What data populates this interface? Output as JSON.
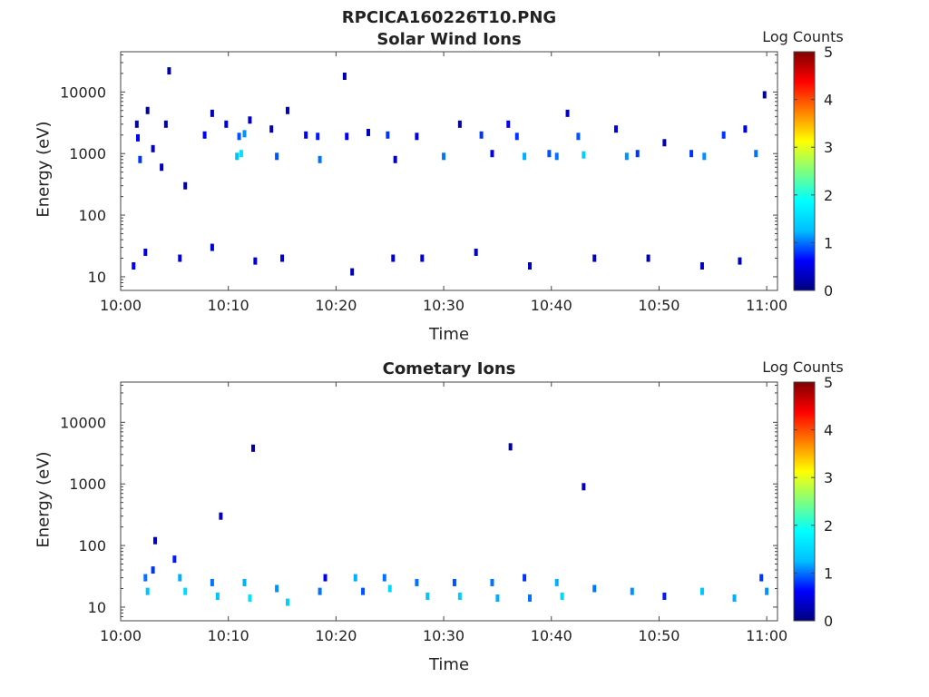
{
  "figure_title": "RPCICA160226T10.PNG",
  "colorscale": [
    "#00007f",
    "#0000ff",
    "#00bfff",
    "#00ffff",
    "#7fff7f",
    "#ffff00",
    "#ff7f00",
    "#ff0000",
    "#7f0000"
  ],
  "chart_data": [
    {
      "type": "heatmap",
      "title": "Solar Wind Ions",
      "xlabel": "Time",
      "ylabel": "Energy (eV)",
      "x_ticks": [
        "10:00",
        "10:10",
        "10:20",
        "10:30",
        "10:40",
        "10:50",
        "11:00"
      ],
      "y_ticks": [
        "10",
        "100",
        "1000",
        "10000"
      ],
      "y_scale": "log",
      "y_range": [
        6,
        45000
      ],
      "x_range_minutes": [
        0,
        61
      ],
      "colorbar": {
        "title": "Log Counts",
        "ticks": [
          "0",
          "1",
          "2",
          "3",
          "4",
          "5"
        ],
        "range": [
          0,
          5
        ]
      },
      "cells": [
        {
          "t": 1.5,
          "e": 3000,
          "v": 0.3
        },
        {
          "t": 1.8,
          "e": 800,
          "v": 0.8
        },
        {
          "t": 1.6,
          "e": 1800,
          "v": 0.6
        },
        {
          "t": 2.5,
          "e": 5000,
          "v": 0.2
        },
        {
          "t": 4.5,
          "e": 22000,
          "v": 0.2
        },
        {
          "t": 4.2,
          "e": 3000,
          "v": 0.3
        },
        {
          "t": 3.0,
          "e": 1200,
          "v": 0.4
        },
        {
          "t": 3.8,
          "e": 600,
          "v": 0.3
        },
        {
          "t": 6.0,
          "e": 300,
          "v": 0.2
        },
        {
          "t": 7.8,
          "e": 2000,
          "v": 0.6
        },
        {
          "t": 8.5,
          "e": 4500,
          "v": 0.3
        },
        {
          "t": 9.8,
          "e": 3000,
          "v": 0.5
        },
        {
          "t": 10.8,
          "e": 900,
          "v": 1.3
        },
        {
          "t": 11.2,
          "e": 1000,
          "v": 1.6
        },
        {
          "t": 11.0,
          "e": 1900,
          "v": 0.9
        },
        {
          "t": 11.5,
          "e": 2100,
          "v": 1.1
        },
        {
          "t": 12.0,
          "e": 3500,
          "v": 0.3
        },
        {
          "t": 14.0,
          "e": 2500,
          "v": 0.3
        },
        {
          "t": 14.5,
          "e": 900,
          "v": 0.9
        },
        {
          "t": 15.5,
          "e": 5000,
          "v": 0.3
        },
        {
          "t": 17.2,
          "e": 2000,
          "v": 0.6
        },
        {
          "t": 18.5,
          "e": 800,
          "v": 1.0
        },
        {
          "t": 18.3,
          "e": 1900,
          "v": 0.7
        },
        {
          "t": 20.8,
          "e": 18000,
          "v": 0.2
        },
        {
          "t": 21.0,
          "e": 1900,
          "v": 0.6
        },
        {
          "t": 23.0,
          "e": 2200,
          "v": 0.3
        },
        {
          "t": 24.8,
          "e": 2000,
          "v": 0.8
        },
        {
          "t": 25.5,
          "e": 800,
          "v": 0.3
        },
        {
          "t": 27.5,
          "e": 1900,
          "v": 0.5
        },
        {
          "t": 30.0,
          "e": 900,
          "v": 1.0
        },
        {
          "t": 31.5,
          "e": 3000,
          "v": 0.3
        },
        {
          "t": 33.5,
          "e": 2000,
          "v": 0.8
        },
        {
          "t": 34.5,
          "e": 1000,
          "v": 0.6
        },
        {
          "t": 36.0,
          "e": 3000,
          "v": 0.6
        },
        {
          "t": 36.8,
          "e": 1900,
          "v": 0.8
        },
        {
          "t": 37.5,
          "e": 900,
          "v": 1.2
        },
        {
          "t": 39.8,
          "e": 1000,
          "v": 0.9
        },
        {
          "t": 40.5,
          "e": 900,
          "v": 1.0
        },
        {
          "t": 41.5,
          "e": 4500,
          "v": 0.3
        },
        {
          "t": 42.5,
          "e": 1900,
          "v": 0.9
        },
        {
          "t": 43.0,
          "e": 950,
          "v": 1.4
        },
        {
          "t": 46.0,
          "e": 2500,
          "v": 0.5
        },
        {
          "t": 47.0,
          "e": 900,
          "v": 1.1
        },
        {
          "t": 48.0,
          "e": 1000,
          "v": 0.8
        },
        {
          "t": 50.5,
          "e": 1500,
          "v": 0.3
        },
        {
          "t": 53.0,
          "e": 1000,
          "v": 0.8
        },
        {
          "t": 54.2,
          "e": 900,
          "v": 1.1
        },
        {
          "t": 56.0,
          "e": 2000,
          "v": 0.8
        },
        {
          "t": 58.0,
          "e": 2500,
          "v": 0.5
        },
        {
          "t": 59.0,
          "e": 1000,
          "v": 1.0
        },
        {
          "t": 59.8,
          "e": 9000,
          "v": 0.3
        },
        {
          "t": 1.2,
          "e": 15,
          "v": 0.6
        },
        {
          "t": 2.3,
          "e": 25,
          "v": 0.5
        },
        {
          "t": 5.5,
          "e": 20,
          "v": 0.5
        },
        {
          "t": 8.5,
          "e": 30,
          "v": 0.4
        },
        {
          "t": 12.5,
          "e": 18,
          "v": 0.4
        },
        {
          "t": 15.0,
          "e": 20,
          "v": 0.4
        },
        {
          "t": 21.5,
          "e": 12,
          "v": 0.3
        },
        {
          "t": 25.3,
          "e": 20,
          "v": 0.4
        },
        {
          "t": 28.0,
          "e": 20,
          "v": 0.4
        },
        {
          "t": 33.0,
          "e": 25,
          "v": 0.4
        },
        {
          "t": 38.0,
          "e": 15,
          "v": 0.3
        },
        {
          "t": 44.0,
          "e": 20,
          "v": 0.3
        },
        {
          "t": 49.0,
          "e": 20,
          "v": 0.3
        },
        {
          "t": 54.0,
          "e": 15,
          "v": 0.3
        },
        {
          "t": 57.5,
          "e": 18,
          "v": 0.3
        }
      ]
    },
    {
      "type": "heatmap",
      "title": "Cometary Ions",
      "xlabel": "Time",
      "ylabel": "Energy (eV)",
      "x_ticks": [
        "10:00",
        "10:10",
        "10:20",
        "10:30",
        "10:40",
        "10:50",
        "11:00"
      ],
      "y_ticks": [
        "10",
        "100",
        "1000",
        "10000"
      ],
      "y_scale": "log",
      "y_range": [
        6,
        45000
      ],
      "x_range_minutes": [
        0,
        61
      ],
      "colorbar": {
        "title": "Log Counts",
        "ticks": [
          "0",
          "1",
          "2",
          "3",
          "4",
          "5"
        ],
        "range": [
          0,
          5
        ]
      },
      "cells": [
        {
          "t": 2.3,
          "e": 30,
          "v": 1.0
        },
        {
          "t": 2.5,
          "e": 18,
          "v": 1.3
        },
        {
          "t": 3.0,
          "e": 40,
          "v": 0.8
        },
        {
          "t": 3.2,
          "e": 120,
          "v": 0.4
        },
        {
          "t": 5.0,
          "e": 60,
          "v": 0.7
        },
        {
          "t": 5.5,
          "e": 30,
          "v": 1.2
        },
        {
          "t": 6.0,
          "e": 18,
          "v": 1.5
        },
        {
          "t": 8.5,
          "e": 25,
          "v": 1.0
        },
        {
          "t": 9.0,
          "e": 15,
          "v": 1.3
        },
        {
          "t": 9.3,
          "e": 300,
          "v": 0.3
        },
        {
          "t": 11.5,
          "e": 25,
          "v": 1.2
        },
        {
          "t": 12.0,
          "e": 14,
          "v": 1.6
        },
        {
          "t": 12.3,
          "e": 3800,
          "v": 0.2
        },
        {
          "t": 14.5,
          "e": 20,
          "v": 1.1
        },
        {
          "t": 15.5,
          "e": 12,
          "v": 1.4
        },
        {
          "t": 18.5,
          "e": 18,
          "v": 1.0
        },
        {
          "t": 19.0,
          "e": 30,
          "v": 0.6
        },
        {
          "t": 21.8,
          "e": 30,
          "v": 1.2
        },
        {
          "t": 22.5,
          "e": 18,
          "v": 0.9
        },
        {
          "t": 24.5,
          "e": 30,
          "v": 1.0
        },
        {
          "t": 25.0,
          "e": 20,
          "v": 1.5
        },
        {
          "t": 27.5,
          "e": 25,
          "v": 1.0
        },
        {
          "t": 28.5,
          "e": 15,
          "v": 1.3
        },
        {
          "t": 31.0,
          "e": 25,
          "v": 0.9
        },
        {
          "t": 31.5,
          "e": 15,
          "v": 1.4
        },
        {
          "t": 34.5,
          "e": 25,
          "v": 1.0
        },
        {
          "t": 35.0,
          "e": 14,
          "v": 1.2
        },
        {
          "t": 36.2,
          "e": 4000,
          "v": 0.2
        },
        {
          "t": 37.5,
          "e": 30,
          "v": 0.8
        },
        {
          "t": 38.0,
          "e": 14,
          "v": 1.0
        },
        {
          "t": 40.5,
          "e": 25,
          "v": 1.2
        },
        {
          "t": 41.0,
          "e": 15,
          "v": 1.5
        },
        {
          "t": 43.0,
          "e": 900,
          "v": 0.3
        },
        {
          "t": 44.0,
          "e": 20,
          "v": 1.0
        },
        {
          "t": 47.5,
          "e": 18,
          "v": 1.1
        },
        {
          "t": 50.5,
          "e": 15,
          "v": 0.7
        },
        {
          "t": 54.0,
          "e": 18,
          "v": 1.3
        },
        {
          "t": 57.0,
          "e": 14,
          "v": 1.2
        },
        {
          "t": 59.5,
          "e": 30,
          "v": 0.8
        },
        {
          "t": 60.0,
          "e": 18,
          "v": 1.1
        }
      ]
    }
  ]
}
